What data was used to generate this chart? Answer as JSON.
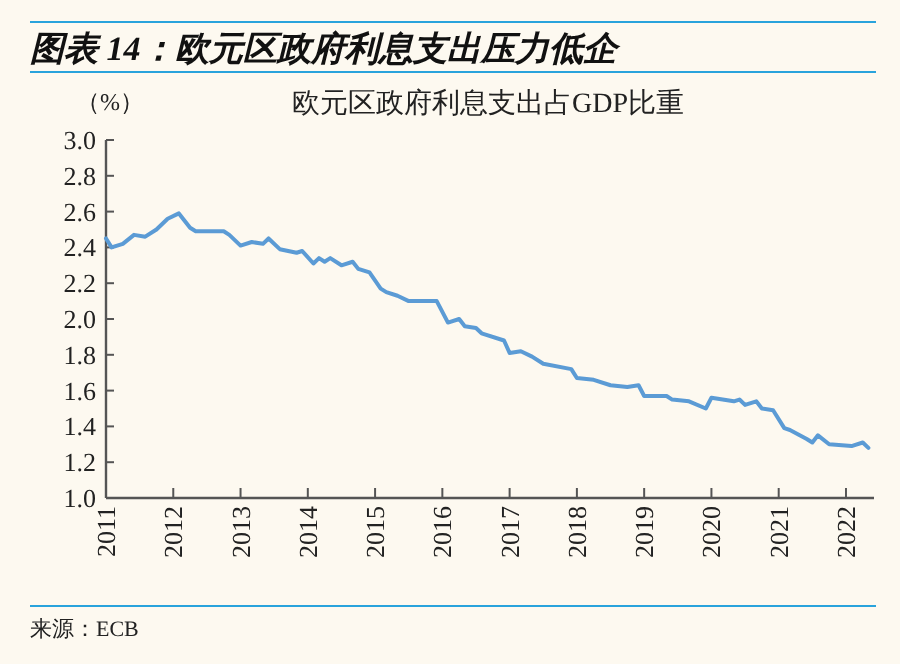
{
  "chart_data": {
    "type": "line",
    "title": "图表 14：欧元区政府利息支出压力低企",
    "subtitle": "欧元区政府利息支出占GDP比重",
    "ylabel": "（%）",
    "annotations": [
      "来源：ECB"
    ],
    "x": [
      "2011-01",
      "2011-02",
      "2011-04",
      "2011-06",
      "2011-08",
      "2011-10",
      "2011-12",
      "2012-02",
      "2012-04",
      "2012-05",
      "2012-10",
      "2012-11",
      "2013-01",
      "2013-03",
      "2013-05",
      "2013-06",
      "2013-08",
      "2013-11",
      "2013-12",
      "2014-02",
      "2014-03",
      "2014-04",
      "2014-05",
      "2014-07",
      "2014-09",
      "2014-10",
      "2014-12",
      "2015-02",
      "2015-03",
      "2015-05",
      "2015-07",
      "2015-10",
      "2015-12",
      "2016-02",
      "2016-04",
      "2016-05",
      "2016-07",
      "2016-08",
      "2016-12",
      "2017-01",
      "2017-03",
      "2017-05",
      "2017-07",
      "2017-12",
      "2018-01",
      "2018-04",
      "2018-07",
      "2018-10",
      "2018-12",
      "2019-01",
      "2019-05",
      "2019-06",
      "2019-09",
      "2019-12",
      "2020-01",
      "2020-05",
      "2020-06",
      "2020-07",
      "2020-09",
      "2020-10",
      "2020-12",
      "2021-02",
      "2021-03",
      "2021-06",
      "2021-07",
      "2021-08",
      "2021-10",
      "2022-02",
      "2022-04",
      "2022-05"
    ],
    "series": [
      {
        "color": "#5b9bd5",
        "values": [
          2.45,
          2.4,
          2.42,
          2.47,
          2.46,
          2.5,
          2.56,
          2.59,
          2.51,
          2.49,
          2.49,
          2.47,
          2.41,
          2.43,
          2.42,
          2.45,
          2.39,
          2.37,
          2.38,
          2.31,
          2.34,
          2.32,
          2.34,
          2.3,
          2.32,
          2.28,
          2.26,
          2.17,
          2.15,
          2.13,
          2.1,
          2.1,
          2.1,
          1.98,
          2.0,
          1.96,
          1.95,
          1.92,
          1.88,
          1.81,
          1.82,
          1.79,
          1.75,
          1.72,
          1.67,
          1.66,
          1.63,
          1.62,
          1.63,
          1.57,
          1.57,
          1.55,
          1.54,
          1.5,
          1.56,
          1.54,
          1.55,
          1.52,
          1.54,
          1.5,
          1.49,
          1.39,
          1.38,
          1.33,
          1.31,
          1.35,
          1.3,
          1.29,
          1.31,
          1.28
        ]
      }
    ],
    "xlim": [
      "2011-01",
      "2022-06"
    ],
    "xticks": [
      "2011",
      "2012",
      "2013",
      "2014",
      "2015",
      "2016",
      "2017",
      "2018",
      "2019",
      "2020",
      "2021",
      "2022"
    ],
    "ylim": [
      1.0,
      3.0
    ],
    "yticks": [
      {
        "value": 1.0,
        "label": "1.0"
      },
      {
        "value": 1.2,
        "label": "1.2"
      },
      {
        "value": 1.4,
        "label": "1.4"
      },
      {
        "value": 1.6,
        "label": "1.6"
      },
      {
        "value": 1.8,
        "label": "1.8"
      },
      {
        "value": 2.0,
        "label": "2.0"
      },
      {
        "value": 2.2,
        "label": "2.2"
      },
      {
        "value": 2.4,
        "label": "2.4"
      },
      {
        "value": 2.6,
        "label": "2.6"
      },
      {
        "value": 2.8,
        "label": "2.8"
      },
      {
        "value": 3.0,
        "label": "3.0"
      }
    ],
    "grid": false,
    "marker": "none",
    "line_style": "solid"
  }
}
